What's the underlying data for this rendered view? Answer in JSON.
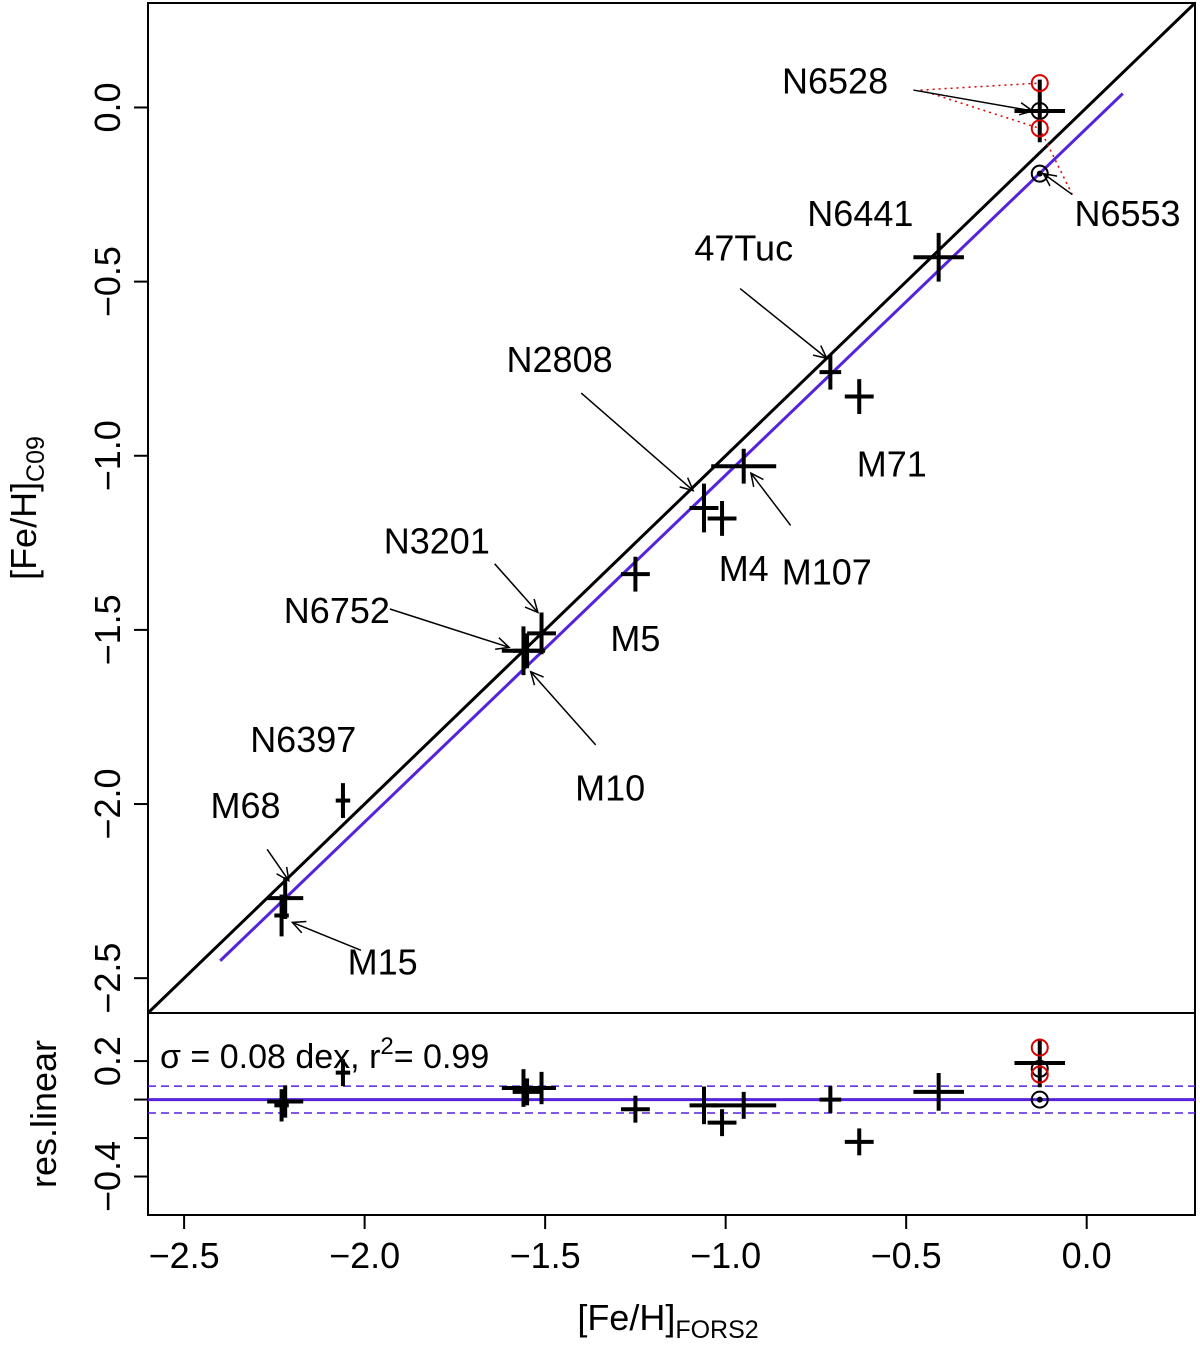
{
  "chart_data": [
    {
      "type": "scatter",
      "panel": "main",
      "xlabel": "[Fe/H]",
      "xlabel_sub": "FORS2",
      "ylabel": "[Fe/H]",
      "ylabel_sub": "C09",
      "xlim": [
        -2.6,
        0.3
      ],
      "ylim": [
        -2.6,
        0.3
      ],
      "x_ticks": [
        -2.5,
        -2.0,
        -1.5,
        -1.0,
        -0.5,
        0.0
      ],
      "x_tick_labels": [
        "−2.5",
        "−2.0",
        "−1.5",
        "−1.0",
        "−0.5",
        "0.0"
      ],
      "y_ticks": [
        -2.5,
        -2.0,
        -1.5,
        -1.0,
        -0.5,
        0.0
      ],
      "y_tick_labels": [
        "−2.5",
        "−2.0",
        "−1.5",
        "−1.0",
        "−0.5",
        "0.0"
      ],
      "identity_line": {
        "color": "#000000"
      },
      "fit_line": {
        "color": "#5522dd",
        "x": [
          -2.4,
          0.1
        ],
        "y": [
          -2.45,
          0.04
        ]
      },
      "points": [
        {
          "x": -2.22,
          "y": -2.27,
          "xerr": 0.05,
          "yerr": 0.06
        },
        {
          "x": -2.23,
          "y": -2.32,
          "xerr": 0.02,
          "yerr": 0.06
        },
        {
          "x": -2.06,
          "y": -1.99,
          "xerr": 0.02,
          "yerr": 0.05
        },
        {
          "x": -1.56,
          "y": -1.56,
          "xerr": 0.06,
          "yerr": 0.07
        },
        {
          "x": -1.55,
          "y": -1.56,
          "xerr": 0.04,
          "yerr": 0.05
        },
        {
          "x": -1.51,
          "y": -1.51,
          "xerr": 0.04,
          "yerr": 0.06
        },
        {
          "x": -1.25,
          "y": -1.34,
          "xerr": 0.04,
          "yerr": 0.05
        },
        {
          "x": -1.06,
          "y": -1.15,
          "xerr": 0.04,
          "yerr": 0.07
        },
        {
          "x": -1.01,
          "y": -1.18,
          "xerr": 0.04,
          "yerr": 0.05
        },
        {
          "x": -0.95,
          "y": -1.03,
          "xerr": 0.09,
          "yerr": 0.05
        },
        {
          "x": -0.71,
          "y": -0.76,
          "xerr": 0.03,
          "yerr": 0.05
        },
        {
          "x": -0.63,
          "y": -0.83,
          "xerr": 0.04,
          "yerr": 0.05
        },
        {
          "x": -0.41,
          "y": -0.43,
          "xerr": 0.07,
          "yerr": 0.07
        },
        {
          "x": -0.13,
          "y": -0.01,
          "xerr": 0.07,
          "yerr": 0.09
        }
      ],
      "circled_points": [
        {
          "x": -0.13,
          "y": -0.19,
          "color": "#000000",
          "dot": true
        },
        {
          "x": -0.13,
          "y": -0.01,
          "color": "#000000",
          "dot": false
        },
        {
          "x": -0.13,
          "y": 0.07,
          "color": "#dd0000",
          "dot": false
        },
        {
          "x": -0.13,
          "y": -0.06,
          "color": "#dd0000",
          "dot": false
        }
      ],
      "annotations": [
        {
          "text": "N6528",
          "tx": -0.55,
          "ty": 0.04,
          "anchor": "end",
          "arrow": [
            -0.48,
            0.05,
            -0.15,
            -0.01
          ]
        },
        {
          "text": "N6553",
          "tx": 0.26,
          "ty": -0.34,
          "anchor": "end",
          "arrow": [
            -0.04,
            -0.25,
            -0.12,
            -0.19
          ]
        },
        {
          "text": "N6441",
          "tx": -0.48,
          "ty": -0.34,
          "anchor": "end",
          "arrow": null
        },
        {
          "text": "47Tuc",
          "tx": -0.95,
          "ty": -0.44,
          "anchor": "middle",
          "arrow": [
            -0.96,
            -0.52,
            -0.72,
            -0.72
          ]
        },
        {
          "text": "N2808",
          "tx": -1.46,
          "ty": -0.76,
          "anchor": "middle",
          "arrow": [
            -1.4,
            -0.82,
            -1.09,
            -1.1
          ]
        },
        {
          "text": "M71",
          "tx": -0.54,
          "ty": -1.06,
          "anchor": "middle",
          "arrow": null
        },
        {
          "text": "M107",
          "tx": -0.72,
          "ty": -1.37,
          "anchor": "middle",
          "arrow": [
            -0.82,
            -1.2,
            -0.93,
            -1.05
          ]
        },
        {
          "text": "M4",
          "tx": -0.95,
          "ty": -1.36,
          "anchor": "middle",
          "arrow": null
        },
        {
          "text": "N3201",
          "tx": -1.8,
          "ty": -1.28,
          "anchor": "middle",
          "arrow": [
            -1.64,
            -1.31,
            -1.52,
            -1.45
          ]
        },
        {
          "text": "M5",
          "tx": -1.25,
          "ty": -1.56,
          "anchor": "middle",
          "arrow": null
        },
        {
          "text": "N6752",
          "tx": -1.93,
          "ty": -1.48,
          "anchor": "end",
          "arrow": [
            -1.93,
            -1.44,
            -1.6,
            -1.55
          ]
        },
        {
          "text": "M10",
          "tx": -1.32,
          "ty": -1.99,
          "anchor": "middle",
          "arrow": [
            -1.36,
            -1.83,
            -1.54,
            -1.62
          ]
        },
        {
          "text": "N6397",
          "tx": -2.17,
          "ty": -1.85,
          "anchor": "middle",
          "arrow": null
        },
        {
          "text": "M68",
          "tx": -2.33,
          "ty": -2.04,
          "anchor": "middle",
          "arrow": [
            -2.27,
            -2.13,
            -2.21,
            -2.22
          ]
        },
        {
          "text": "M15",
          "tx": -1.95,
          "ty": -2.49,
          "anchor": "middle",
          "arrow": [
            -2.01,
            -2.42,
            -2.2,
            -2.34
          ]
        }
      ]
    },
    {
      "type": "scatter",
      "panel": "residuals",
      "ylabel": "res.linear",
      "xlim": [
        -2.6,
        0.3
      ],
      "ylim": [
        -0.6,
        0.45
      ],
      "y_ticks": [
        0.2,
        -0.4
      ],
      "y_tick_labels": [
        "0.2",
        "−0.4"
      ],
      "hlines": {
        "solid": 0.0,
        "dashed": [
          0.07,
          -0.07
        ],
        "color": "#5522dd"
      },
      "stat_sigma": "σ = 0.08 dex,  r",
      "stat_sup": "2",
      "stat_r2": "= 0.99",
      "points": [
        {
          "x": -2.22,
          "y": -0.01,
          "xerr": 0.05,
          "yerr": 0.06
        },
        {
          "x": -2.23,
          "y": -0.03,
          "xerr": 0.02,
          "yerr": 0.06
        },
        {
          "x": -2.06,
          "y": 0.14,
          "xerr": 0.02,
          "yerr": 0.05
        },
        {
          "x": -1.56,
          "y": 0.06,
          "xerr": 0.06,
          "yerr": 0.07
        },
        {
          "x": -1.55,
          "y": 0.04,
          "xerr": 0.04,
          "yerr": 0.05
        },
        {
          "x": -1.51,
          "y": 0.06,
          "xerr": 0.04,
          "yerr": 0.06
        },
        {
          "x": -1.25,
          "y": -0.05,
          "xerr": 0.04,
          "yerr": 0.05
        },
        {
          "x": -1.06,
          "y": -0.03,
          "xerr": 0.04,
          "yerr": 0.07
        },
        {
          "x": -1.01,
          "y": -0.12,
          "xerr": 0.04,
          "yerr": 0.05
        },
        {
          "x": -0.95,
          "y": -0.03,
          "xerr": 0.09,
          "yerr": 0.05
        },
        {
          "x": -0.71,
          "y": 0.0,
          "xerr": 0.03,
          "yerr": 0.05
        },
        {
          "x": -0.63,
          "y": -0.22,
          "xerr": 0.04,
          "yerr": 0.05
        },
        {
          "x": -0.41,
          "y": 0.04,
          "xerr": 0.07,
          "yerr": 0.07
        },
        {
          "x": -0.13,
          "y": 0.19,
          "xerr": 0.07,
          "yerr": 0.09
        }
      ],
      "circled_points": [
        {
          "x": -0.13,
          "y": 0.0,
          "color": "#000000",
          "dot": true
        },
        {
          "x": -0.13,
          "y": 0.16,
          "color": "#000000",
          "dot": false
        },
        {
          "x": -0.13,
          "y": 0.27,
          "color": "#dd0000",
          "dot": false
        },
        {
          "x": -0.13,
          "y": 0.13,
          "color": "#dd0000",
          "dot": false
        }
      ]
    }
  ]
}
